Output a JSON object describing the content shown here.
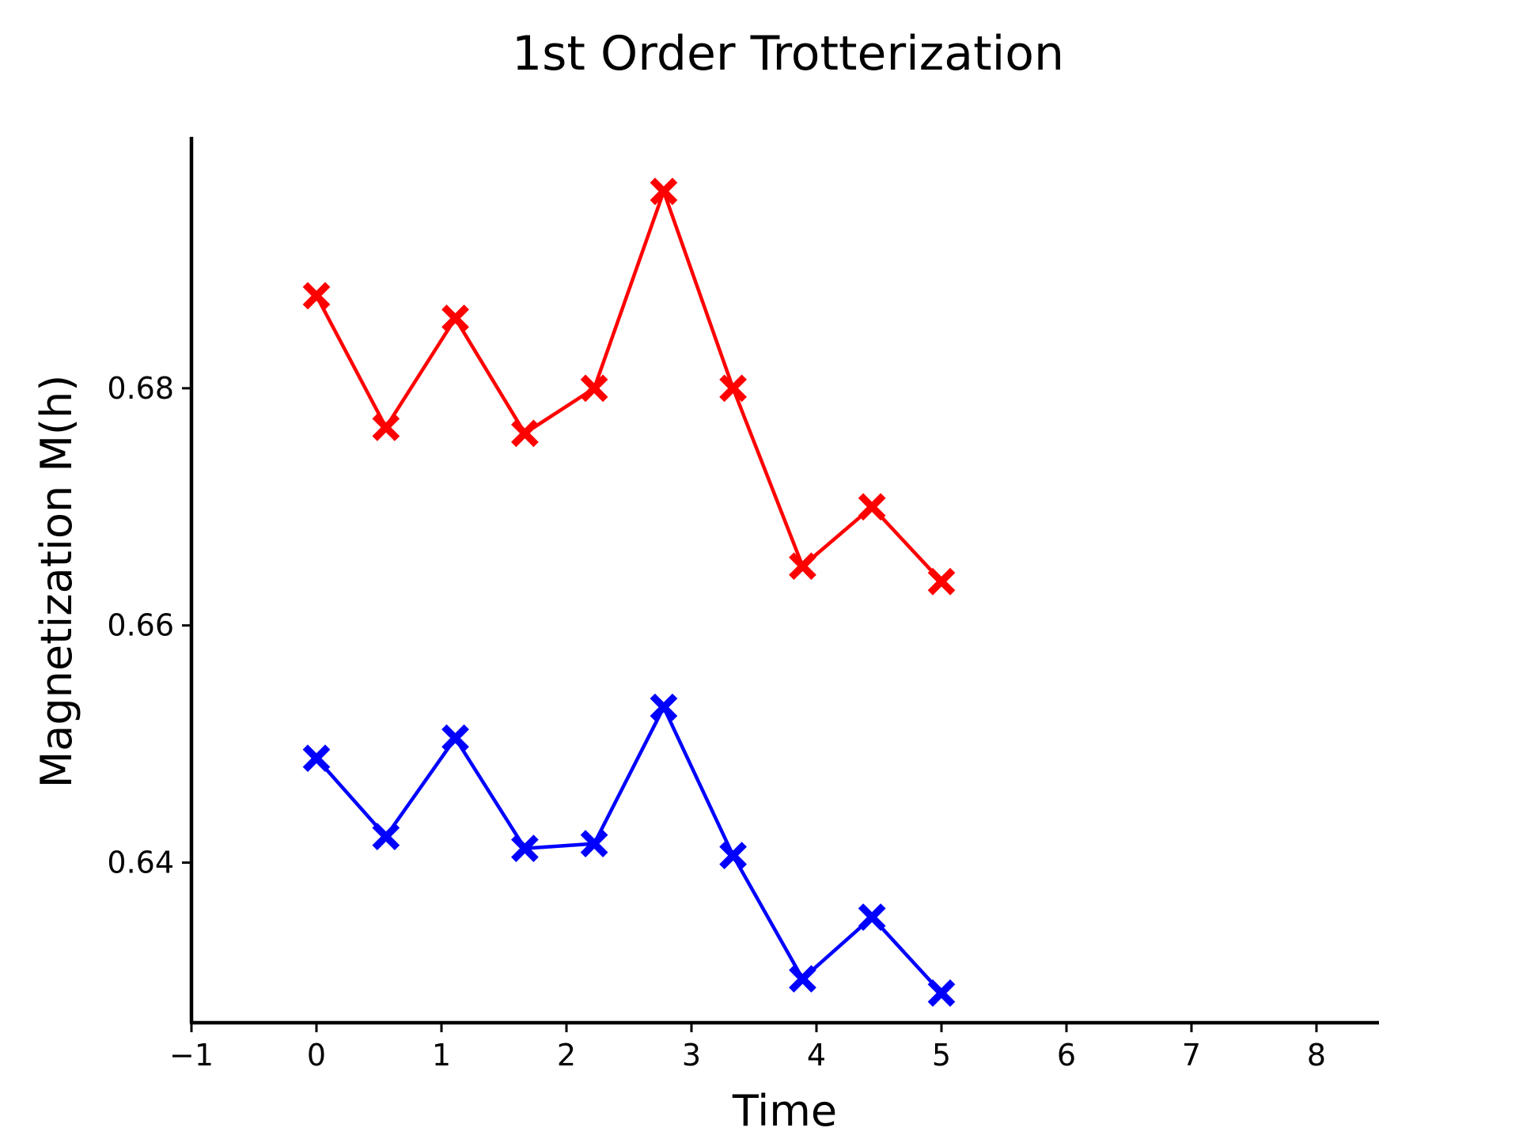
{
  "chart_data": {
    "type": "line",
    "title": "1st Order Trotterization",
    "xlabel": "Time",
    "ylabel": "Magnetization M(h)",
    "xlim": [
      -1,
      8.5
    ],
    "ylim": [
      0.6265,
      0.7012
    ],
    "xticks": [
      -1,
      0,
      1,
      2,
      3,
      4,
      5,
      6,
      7,
      8
    ],
    "xtick_labels": [
      "−1",
      "0",
      "1",
      "2",
      "3",
      "4",
      "5",
      "6",
      "7",
      "8"
    ],
    "yticks": [
      0.64,
      0.66,
      0.68
    ],
    "ytick_labels": [
      "0.64",
      "0.66",
      "0.68"
    ],
    "grid": false,
    "marker": "X",
    "x": [
      0,
      0.556,
      1.111,
      1.667,
      2.222,
      2.778,
      3.333,
      3.889,
      4.444,
      5.0
    ],
    "series": [
      {
        "color": "#ff0000",
        "values": [
          0.6878,
          0.6767,
          0.6859,
          0.6762,
          0.68,
          0.6966,
          0.68,
          0.665,
          0.67,
          0.6637
        ]
      },
      {
        "color": "#0000ff",
        "values": [
          0.6488,
          0.6422,
          0.6505,
          0.6412,
          0.6416,
          0.6531,
          0.6406,
          0.6302,
          0.6354,
          0.629
        ]
      }
    ]
  }
}
